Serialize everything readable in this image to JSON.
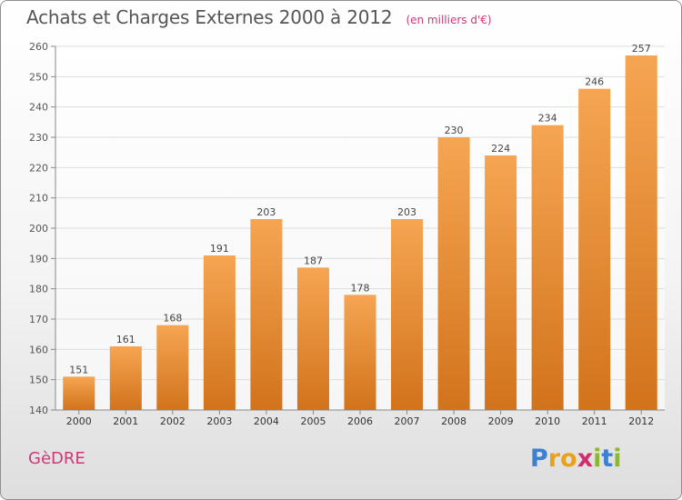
{
  "header": {
    "title": "Achats et Charges Externes 2000 à 2012",
    "subtitle": "(en milliers d'€)"
  },
  "footer": {
    "commune": "GèDRE",
    "logo_letters": [
      "P",
      "r",
      "o",
      "x",
      "i",
      "t",
      "i"
    ],
    "logo_colors": [
      "#3d7fd1",
      "#e8a21c",
      "#e8a21c",
      "#cc2e6e",
      "#8ab92f",
      "#3d7fd1",
      "#8ab92f"
    ]
  },
  "chart_data": {
    "type": "bar",
    "title": "Achats et Charges Externes 2000 à 2012",
    "categories": [
      "2000",
      "2001",
      "2002",
      "2003",
      "2004",
      "2005",
      "2006",
      "2007",
      "2008",
      "2009",
      "2010",
      "2011",
      "2012"
    ],
    "values": [
      151,
      161,
      168,
      191,
      203,
      187,
      178,
      203,
      230,
      224,
      234,
      246,
      257
    ],
    "ylim": [
      140,
      260
    ],
    "yticks": [
      140,
      150,
      160,
      170,
      180,
      190,
      200,
      210,
      220,
      230,
      240,
      250,
      260
    ],
    "grid": true,
    "legend": "none",
    "colors": {
      "bar_top": "#f6a552",
      "bar_bottom": "#d2731c",
      "grid": "#dddddd",
      "axis": "#888888"
    }
  }
}
